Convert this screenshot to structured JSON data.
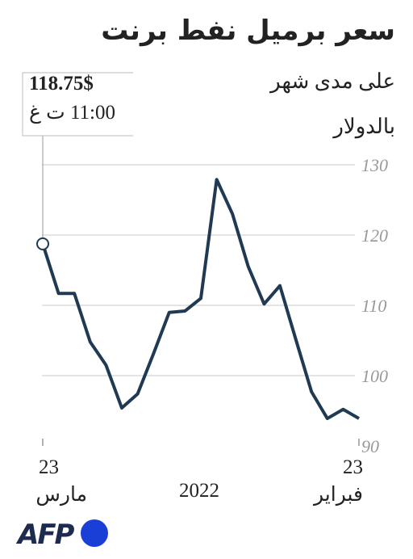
{
  "chart_data": {
    "type": "line",
    "title": "سعر برميل نفط برنت",
    "subtitle": "على مدى شهر",
    "y_label": "بالدولار",
    "x_center_label": "2022",
    "categories": [
      "23 فبراير",
      null,
      null,
      null,
      null,
      null,
      null,
      null,
      null,
      null,
      null,
      null,
      null,
      null,
      null,
      null,
      null,
      null,
      null,
      null,
      "23 مارس"
    ],
    "x_reversed": true,
    "series": [
      {
        "name": "برنت",
        "color": "#1f3a52",
        "values": [
          93.9,
          95.2,
          93.9,
          97.7,
          105.2,
          112.8,
          110.2,
          115.5,
          123.0,
          127.9,
          111.0,
          109.2,
          109.0,
          103.1,
          97.4,
          95.4,
          101.5,
          104.8,
          111.7,
          111.7,
          118.75
        ]
      }
    ],
    "ylim": [
      90,
      130
    ],
    "yticks": [
      90,
      100,
      110,
      120,
      130
    ],
    "grid": true,
    "annotation": {
      "value_label": "118.75$",
      "time": "11:00 ت غ"
    },
    "logo": "AFP"
  }
}
